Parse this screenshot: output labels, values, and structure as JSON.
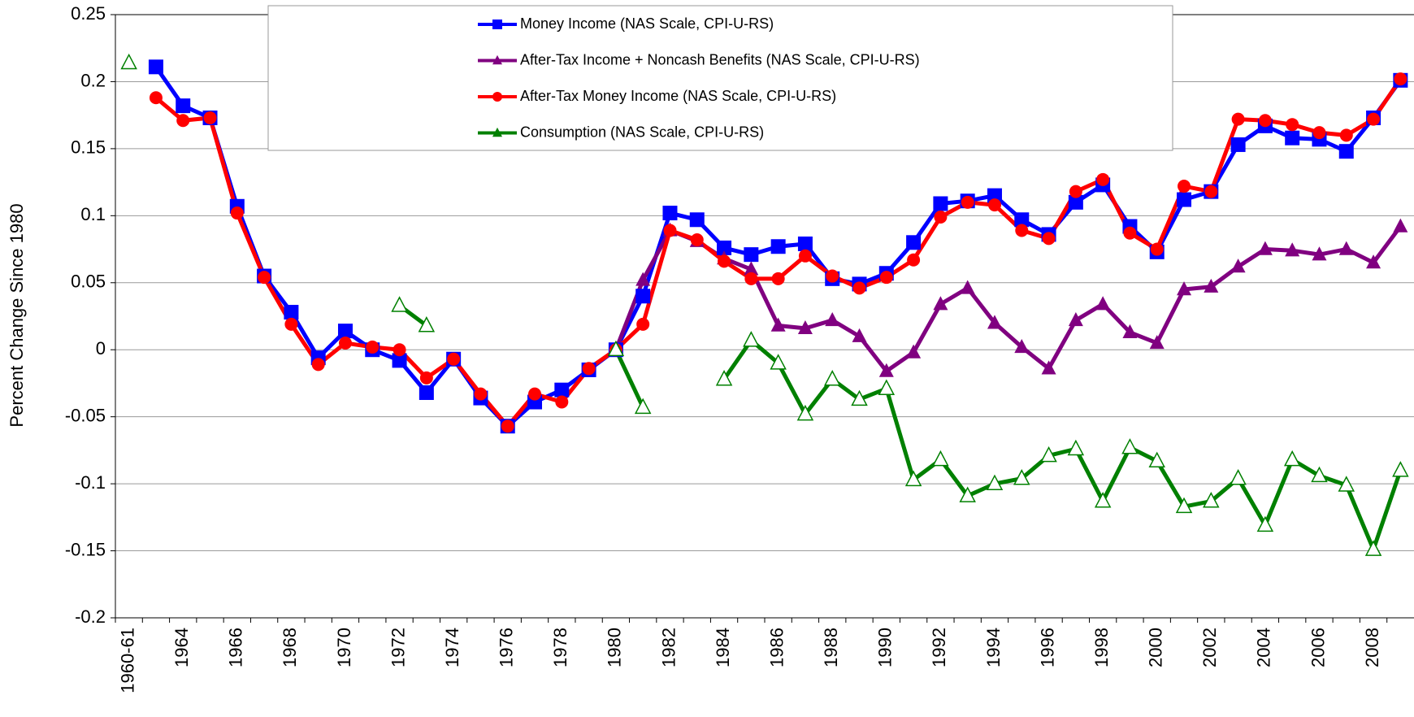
{
  "chart_data": {
    "type": "line",
    "ylabel": "Percent Change Since 1980",
    "categories": [
      "1960-61",
      null,
      "1964",
      null,
      "1966",
      null,
      "1968",
      null,
      "1970",
      null,
      "1972",
      null,
      "1974",
      null,
      "1976",
      null,
      "1978",
      null,
      "1980",
      null,
      "1982",
      null,
      "1984",
      null,
      "1986",
      null,
      "1988",
      null,
      "1990",
      null,
      "1992",
      null,
      "1994",
      null,
      "1996",
      null,
      "1998",
      null,
      "2000",
      null,
      "2002",
      null,
      "2004",
      null,
      "2006",
      null,
      "2008",
      null
    ],
    "ylim": [
      -0.2,
      0.25
    ],
    "yticks": [
      -0.2,
      -0.15,
      -0.1,
      -0.05,
      0,
      0.05,
      0.1,
      0.15,
      0.2,
      0.25
    ],
    "grid": true,
    "series": [
      {
        "name": "Money Income (NAS Scale, CPI-U-RS)",
        "color": "#0000ff",
        "marker": "square",
        "values": [
          null,
          0.211,
          0.182,
          0.173,
          0.107,
          0.055,
          0.028,
          -0.006,
          0.014,
          0.0,
          -0.008,
          -0.032,
          -0.007,
          -0.036,
          -0.057,
          -0.039,
          -0.03,
          -0.015,
          0.0,
          0.04,
          0.102,
          0.097,
          0.076,
          0.071,
          0.077,
          0.079,
          0.053,
          0.049,
          0.057,
          0.08,
          0.109,
          0.111,
          0.115,
          0.097,
          0.086,
          0.11,
          0.123,
          0.092,
          0.073,
          0.112,
          0.118,
          0.153,
          0.167,
          0.158,
          0.157,
          0.148,
          0.173,
          0.201
        ]
      },
      {
        "name": "After-Tax Income + Noncash Benefits (NAS Scale, CPI-U-RS)",
        "color": "#800080",
        "marker": "triangle",
        "values": [
          null,
          null,
          null,
          null,
          null,
          null,
          null,
          null,
          null,
          null,
          null,
          null,
          null,
          null,
          null,
          null,
          null,
          null,
          0.0,
          0.052,
          0.089,
          0.081,
          0.068,
          0.06,
          0.018,
          0.016,
          0.022,
          0.01,
          -0.016,
          -0.002,
          0.034,
          0.046,
          0.02,
          0.002,
          -0.014,
          0.022,
          0.034,
          0.013,
          0.005,
          0.045,
          0.047,
          0.062,
          0.075,
          0.074,
          0.071,
          0.075,
          0.065,
          0.092
        ]
      },
      {
        "name": "After-Tax Money Income (NAS Scale, CPI-U-RS)",
        "color": "#ff0000",
        "marker": "circle",
        "values": [
          null,
          0.188,
          0.171,
          0.173,
          0.102,
          0.054,
          0.019,
          -0.011,
          0.005,
          0.002,
          0.0,
          -0.021,
          -0.007,
          -0.033,
          -0.057,
          -0.033,
          -0.039,
          -0.014,
          0.0,
          0.019,
          0.089,
          0.082,
          0.066,
          0.053,
          0.053,
          0.07,
          0.055,
          0.046,
          0.054,
          0.067,
          0.099,
          0.11,
          0.108,
          0.089,
          0.083,
          0.118,
          0.127,
          0.087,
          0.075,
          0.122,
          0.118,
          0.172,
          0.171,
          0.168,
          0.162,
          0.16,
          0.172,
          0.202
        ]
      },
      {
        "name": "Consumption (NAS Scale, CPI-U-RS)",
        "color": "#008000",
        "marker": "hollow-triangle",
        "values": [
          0.214,
          null,
          null,
          null,
          null,
          null,
          null,
          null,
          null,
          null,
          0.033,
          0.018,
          null,
          null,
          null,
          null,
          null,
          null,
          0.0,
          -0.043,
          null,
          null,
          -0.022,
          0.007,
          -0.01,
          -0.048,
          -0.022,
          -0.037,
          -0.029,
          -0.097,
          -0.082,
          -0.109,
          -0.1,
          -0.096,
          -0.079,
          -0.074,
          -0.113,
          -0.073,
          -0.083,
          -0.117,
          -0.113,
          -0.096,
          -0.131,
          -0.082,
          -0.094,
          -0.101,
          -0.149,
          -0.09
        ]
      }
    ]
  }
}
